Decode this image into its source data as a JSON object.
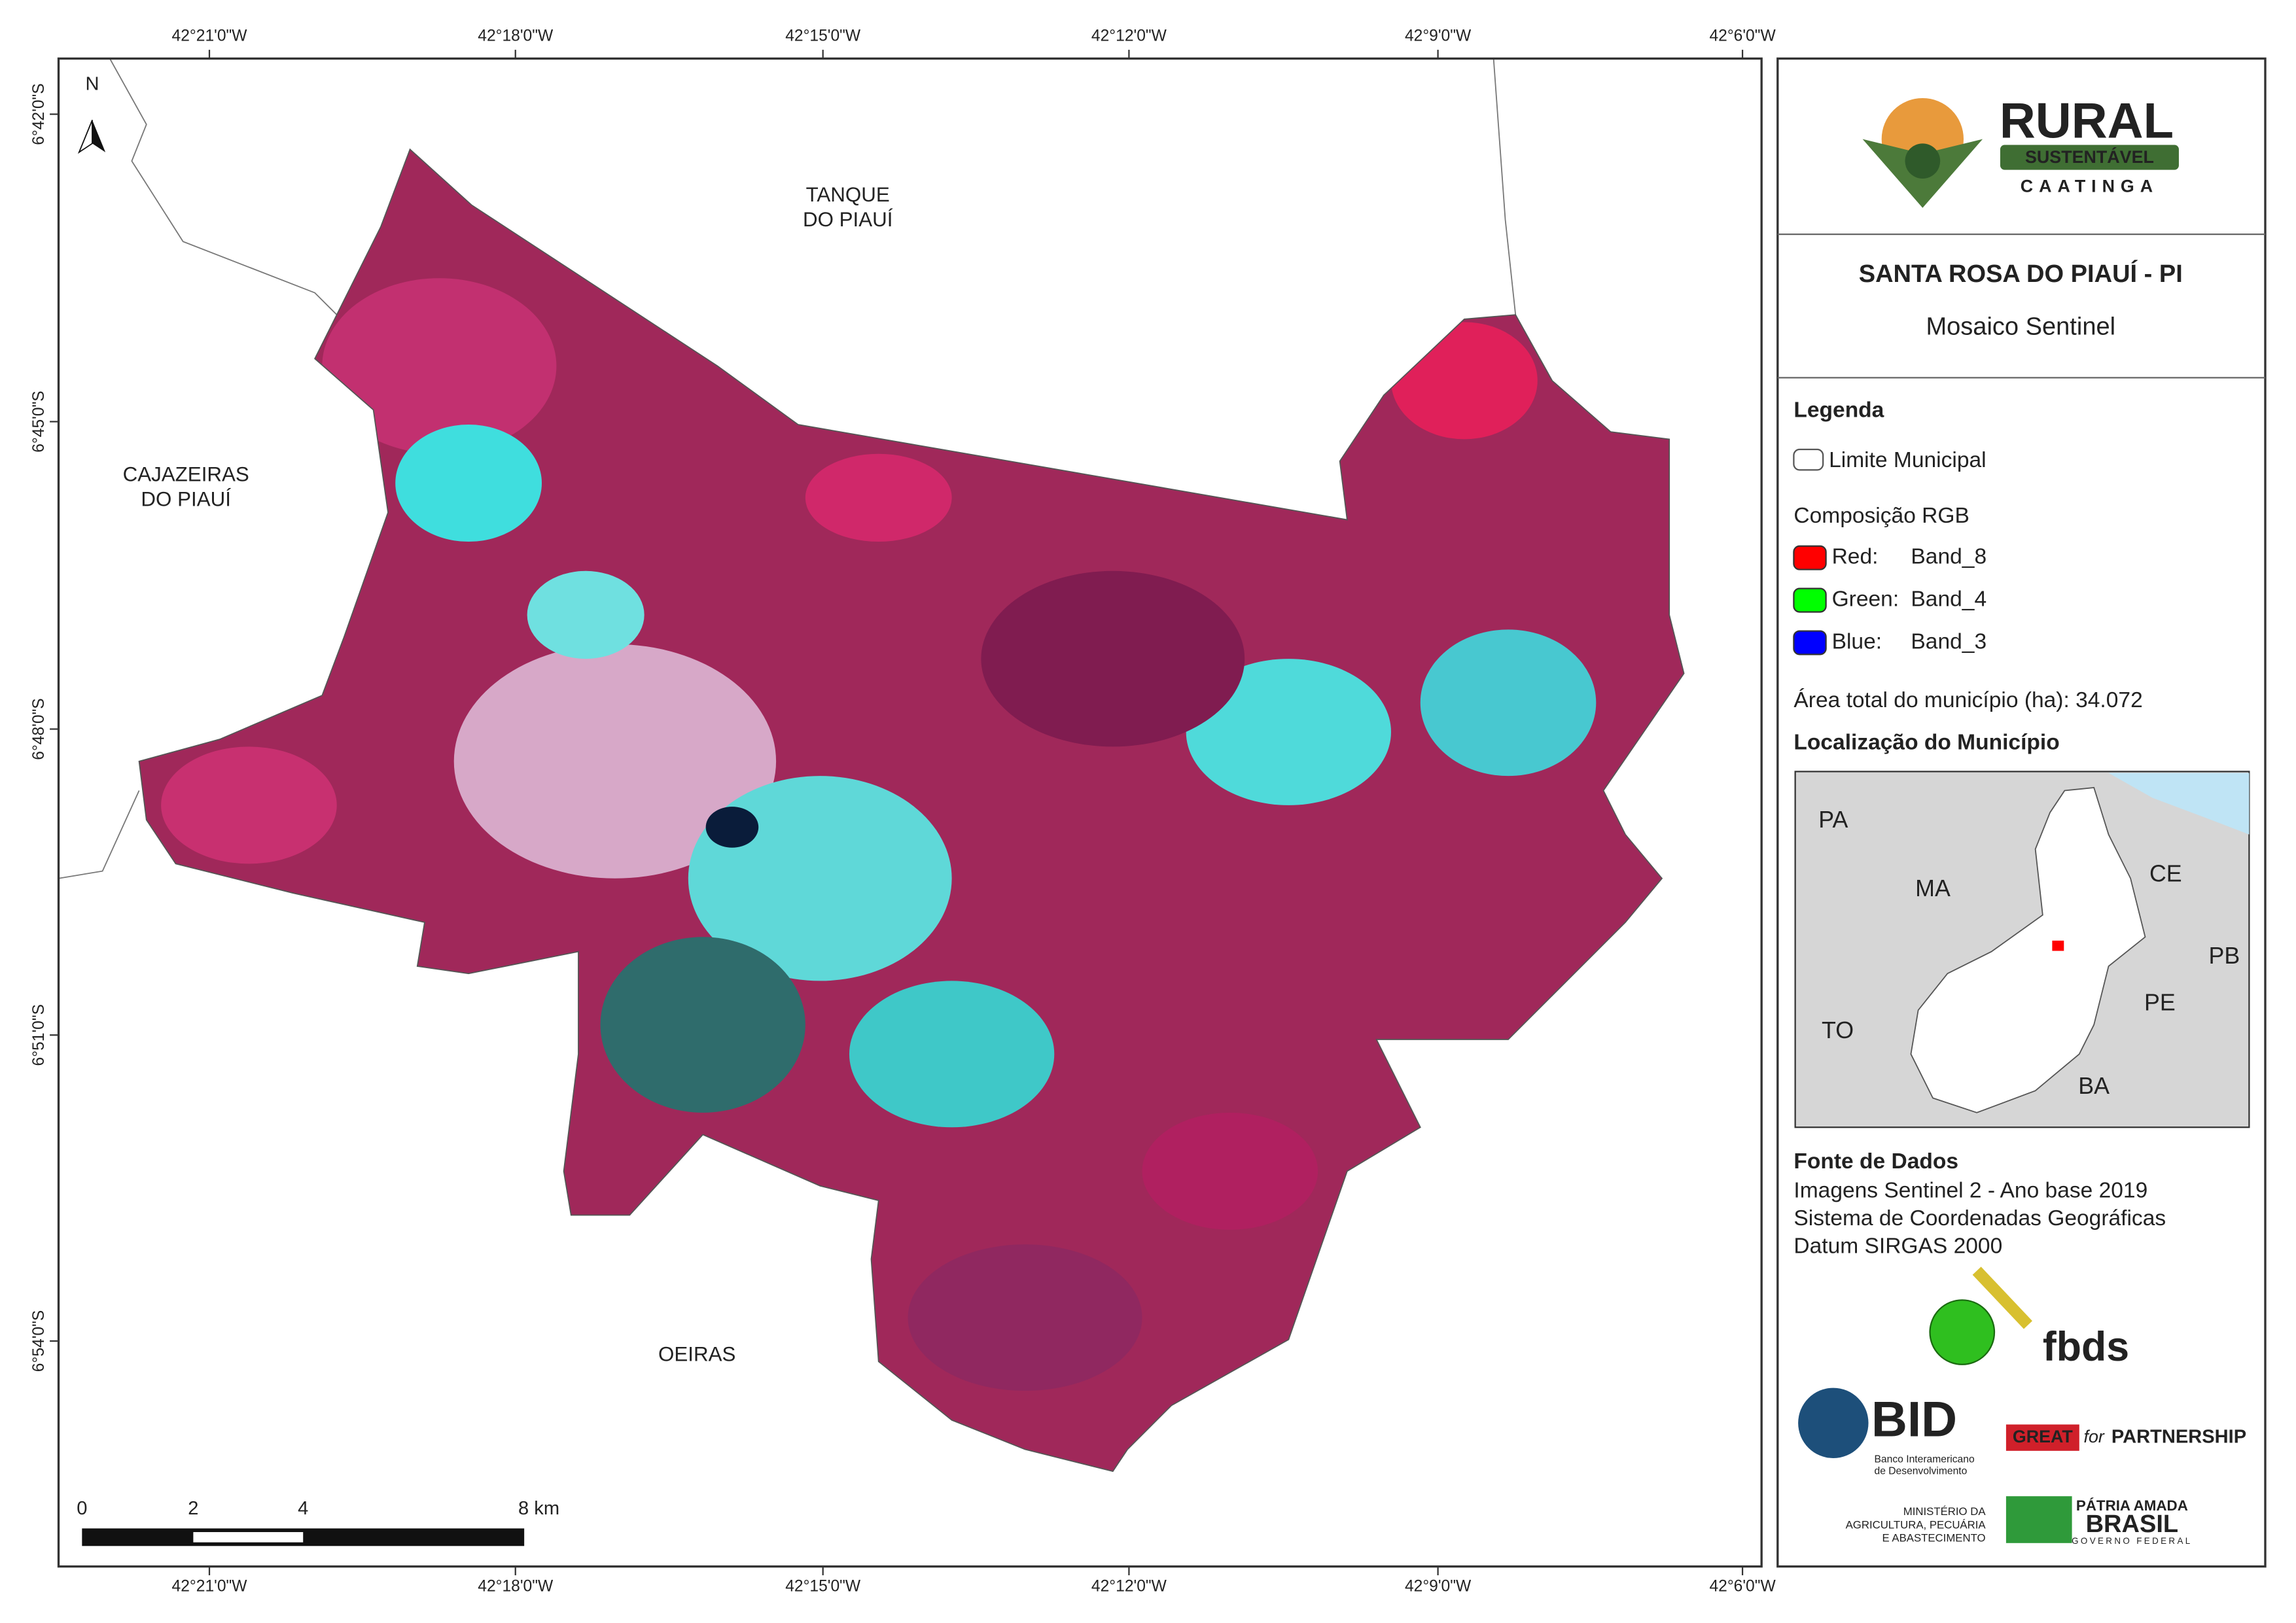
{
  "frame": {
    "lon_top": [
      "42°21'0\"W",
      "42°18'0\"W",
      "42°15'0\"W",
      "42°12'0\"W",
      "42°9'0\"W",
      "42°6'0\"W"
    ],
    "lon_bottom": [
      "42°21'0\"W",
      "42°18'0\"W",
      "42°15'0\"W",
      "42°12'0\"W",
      "42°9'0\"W",
      "42°6'0\"W"
    ],
    "lat_left": [
      "6°42'0\"S",
      "6°45'0\"S",
      "6°48'0\"S",
      "6°51'0\"S",
      "6°54'0\"S"
    ],
    "north": "N"
  },
  "places": [
    {
      "lines": [
        "TANQUE",
        "DO PIAUÍ"
      ]
    },
    {
      "lines": [
        "CAJAZEIRAS",
        "DO PIAUÍ"
      ]
    },
    {
      "lines": [
        "OEIRAS"
      ]
    }
  ],
  "scale_bar": {
    "labels": [
      "0",
      "2",
      "4",
      "8 km"
    ]
  },
  "logo_rural": {
    "name": "RURAL",
    "band": "SUSTENTÁVEL",
    "sub": "CAATINGA"
  },
  "title": "SANTA ROSA DO PIAUÍ - PI",
  "subtitle": "Mosaico Sentinel",
  "legend": {
    "heading": "Legenda",
    "boundary": "Limite Municipal",
    "rgb_heading": "Composição RGB",
    "bands": [
      {
        "channel": "Red:",
        "band": "Band_8",
        "color": "#ff0000"
      },
      {
        "channel": "Green:",
        "band": "Band_4",
        "color": "#00ff00"
      },
      {
        "channel": "Blue:",
        "band": "Band_3",
        "color": "#0000ff"
      }
    ],
    "area": "Área total do município (ha): 34.072"
  },
  "location": {
    "heading": "Localização do Município",
    "states": [
      "PA",
      "MA",
      "CE",
      "PB",
      "PE",
      "TO",
      "BA"
    ]
  },
  "sources": {
    "heading": "Fonte de Dados",
    "lines": [
      "Imagens Sentinel 2 - Ano base 2019",
      "Sistema de Coordenadas Geográficas",
      "Datum SIRGAS 2000"
    ]
  },
  "partners": {
    "fbds": "fbds",
    "bid": "BID",
    "bid_lines": [
      "Banco Interamericano",
      "de Desenvolvimento"
    ],
    "great": "GREAT",
    "for": "for",
    "partnership": "PARTNERSHIP",
    "ministry": [
      "MINISTÉRIO DA",
      "AGRICULTURA, PECUÁRIA",
      "E ABASTECIMENTO"
    ],
    "patria": "PÁTRIA AMADA",
    "brasil": "BRASIL",
    "gov": "GOVERNO FEDERAL"
  }
}
